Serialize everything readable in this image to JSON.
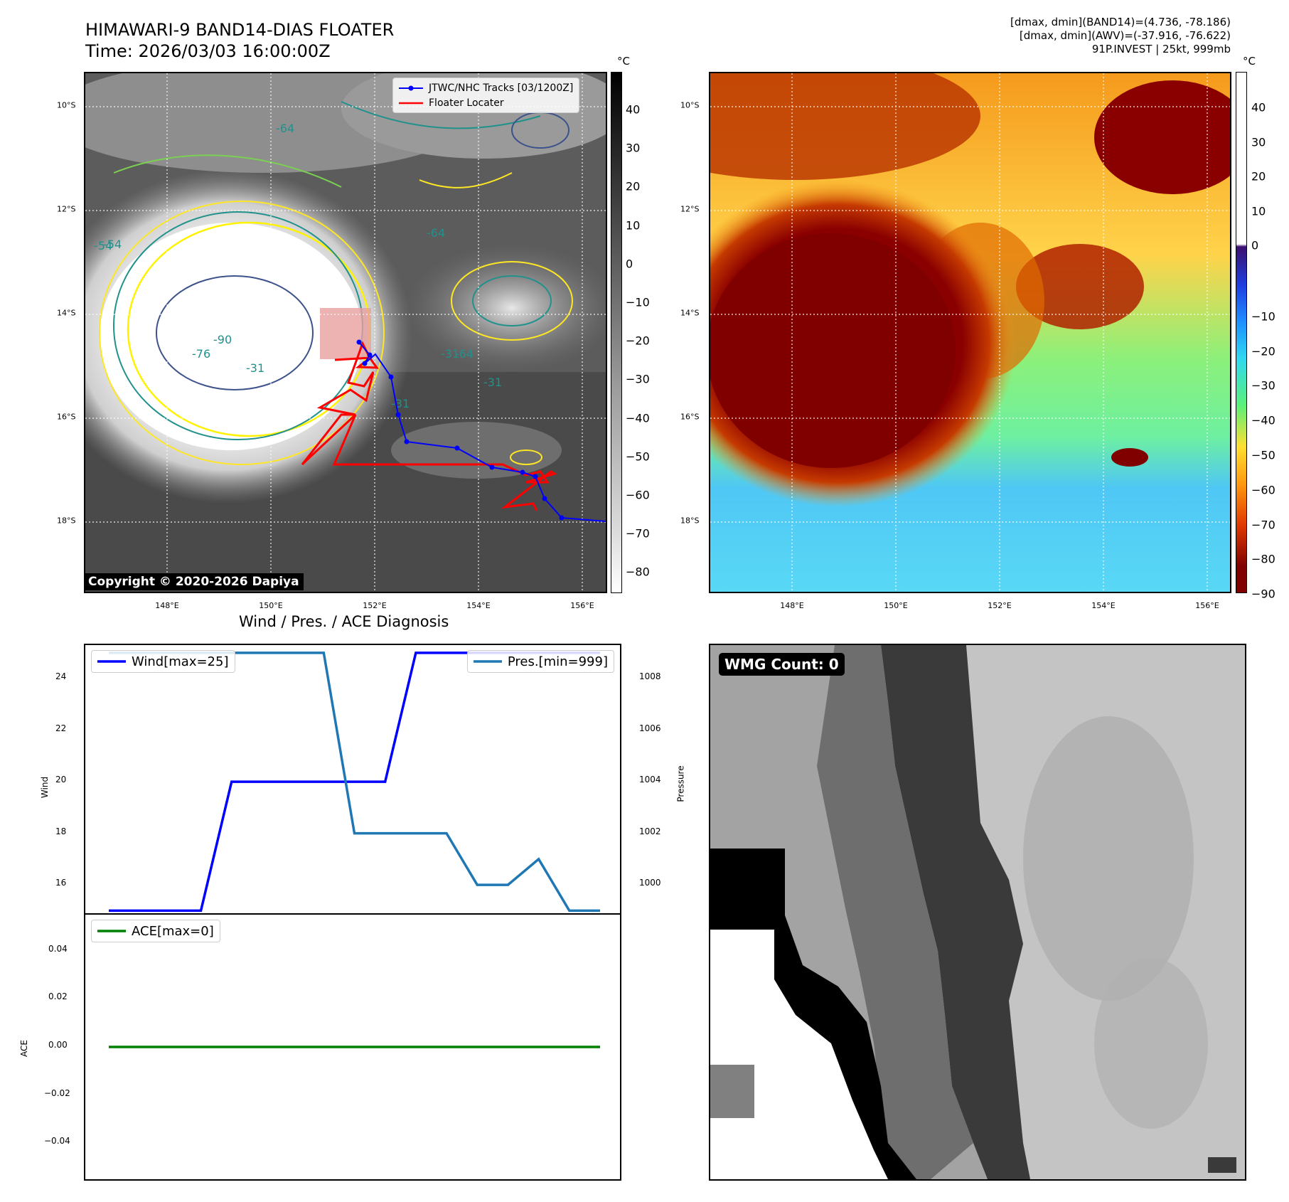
{
  "header": {
    "title_line1": "HIMAWARI-9 BAND14-DIAS FLOATER",
    "title_line2": "Time: 2026/03/03 16:00:00Z",
    "info_line1": "[dmax, dmin](BAND14)=(4.736, -78.186)",
    "info_line2": "[dmax, dmin](AWV)=(-37.916, -76.622)",
    "info_line3": "91P.INVEST | 25kt, 999mb"
  },
  "map": {
    "lat_labels": [
      "10°S",
      "12°S",
      "14°S",
      "16°S",
      "18°S"
    ],
    "lon_labels": [
      "148°E",
      "150°E",
      "152°E",
      "154°E",
      "156°E"
    ],
    "contour_labels": [
      "-64",
      "-54",
      "-31",
      "-90",
      "-76",
      "-31",
      "-31",
      "-64",
      "-31",
      "-64",
      "-54"
    ],
    "copyright": "Copyright © 2020-2026 Dapiya",
    "legend": {
      "tracks": "JTWC/NHC Tracks [03/1200Z]",
      "locater": "Floater Locater"
    }
  },
  "colorbars": {
    "unit": "°C",
    "band14_ticks": [
      "40",
      "30",
      "20",
      "10",
      "0",
      "−10",
      "−20",
      "−30",
      "−40",
      "−50",
      "−60",
      "−70",
      "−80"
    ],
    "awv_ticks": [
      "40",
      "30",
      "20",
      "10",
      "0",
      "−10",
      "−20",
      "−30",
      "−40",
      "−50",
      "−60",
      "−70",
      "−80",
      "−90"
    ]
  },
  "diagnosis": {
    "title": "Wind / Pres. / ACE Diagnosis",
    "wind_legend": "Wind[max=25]",
    "pres_legend": "Pres.[min=999]",
    "ace_legend": "ACE[max=0]",
    "wind_axis_label": "Wind",
    "pres_axis_label": "Pressure",
    "ace_axis_label": "ACE",
    "wind_ticks": [
      "24",
      "22",
      "20",
      "18",
      "16"
    ],
    "pres_ticks": [
      "1008",
      "1006",
      "1004",
      "1002",
      "1000"
    ],
    "ace_ticks": [
      "0.04",
      "0.02",
      "0.00",
      "−0.02",
      "−0.04"
    ]
  },
  "wmg": {
    "badge": "WMG Count: 0"
  },
  "chart_data": [
    {
      "type": "line",
      "title": "Wind / Pres. / ACE Diagnosis",
      "x": [
        0,
        1,
        2,
        3,
        4,
        5,
        6,
        7,
        8,
        9,
        10,
        11,
        12,
        13,
        14,
        15,
        16
      ],
      "series": [
        {
          "name": "Wind[max=25]",
          "axis": "left",
          "color": "#0000ff",
          "values": [
            15,
            15,
            15,
            15,
            20,
            20,
            20,
            20,
            20,
            20,
            25,
            25,
            25,
            25,
            25,
            25,
            25
          ]
        },
        {
          "name": "Pres.[min=999]",
          "axis": "right",
          "color": "#1f77b4",
          "values": [
            1009,
            1009,
            1009,
            1009,
            1009,
            1009,
            1009,
            1009,
            1002,
            1002,
            1002,
            1002,
            1000,
            1000,
            1001,
            999,
            999
          ]
        }
      ],
      "ylabel": "Wind",
      "ylim": [
        14.9,
        25.3
      ],
      "y2label": "Pressure",
      "y2lim": [
        998.9,
        1009.3
      ]
    },
    {
      "type": "line",
      "x": [
        0,
        16
      ],
      "series": [
        {
          "name": "ACE[max=0]",
          "color": "#008000",
          "values": [
            0,
            0
          ]
        }
      ],
      "ylabel": "ACE",
      "ylim": [
        -0.055,
        0.055
      ]
    }
  ]
}
